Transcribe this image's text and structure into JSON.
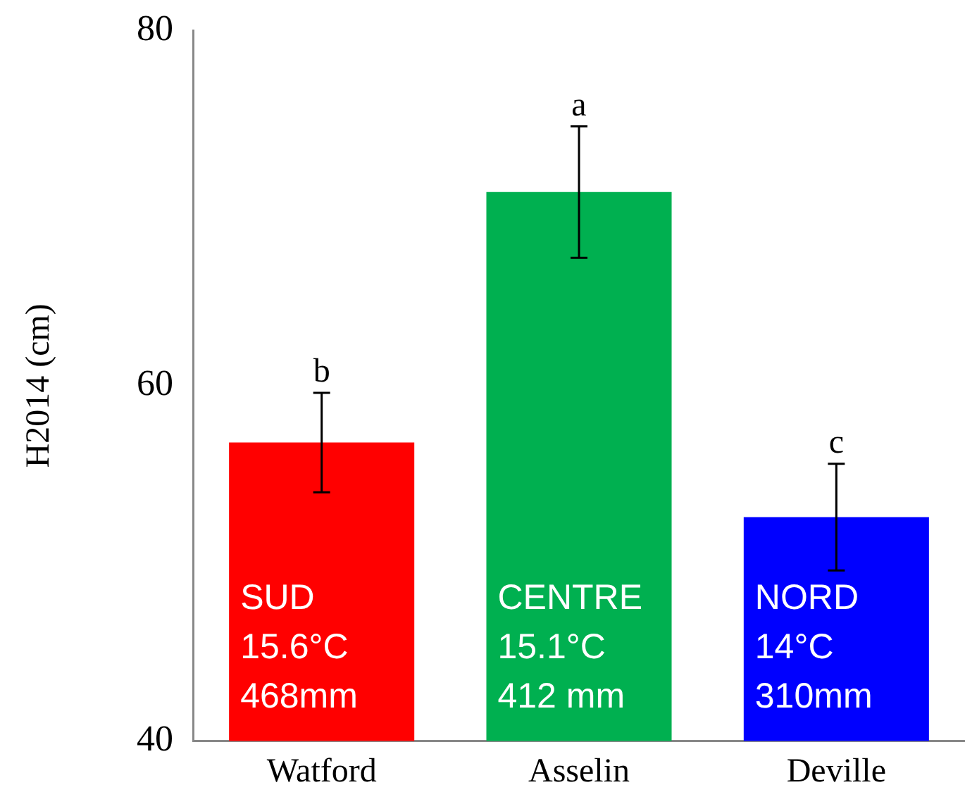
{
  "chart_data": {
    "type": "bar",
    "ylabel": "H2014 (cm)",
    "categories": [
      "Watford",
      "Asselin",
      "Deville"
    ],
    "values": [
      56.8,
      70.9,
      52.6
    ],
    "colors": [
      "#ff0000",
      "#00b050",
      "#0000ff"
    ],
    "errors": [
      2.8,
      3.7,
      3.0
    ],
    "ylim": [
      40,
      80
    ],
    "yticks": [
      40,
      60,
      80
    ],
    "grid": false,
    "legend": false,
    "annotations": [
      {
        "text": "b",
        "x": "Watford",
        "y": 59.6
      },
      {
        "text": "a",
        "x": "Asselin",
        "y": 74.6
      },
      {
        "text": "c",
        "x": "Deville",
        "y": 55.6
      },
      "SUD\n15.6°C\n468mm",
      "CENTRE\n15.1°C\n412 mm",
      "NORD\n14°C\n310mm"
    ]
  }
}
